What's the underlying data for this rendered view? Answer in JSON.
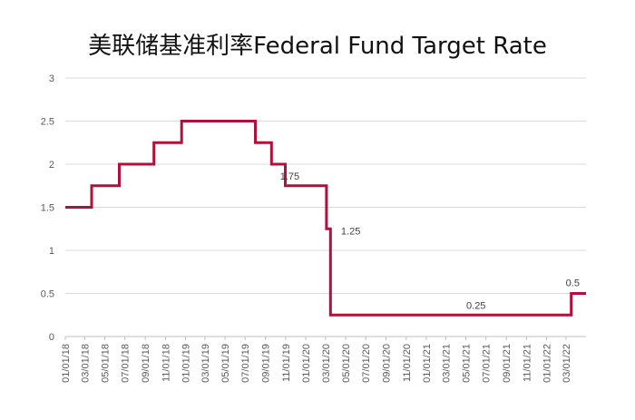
{
  "title": "美联储基准利率Federal Fund Target Rate",
  "chart_data": {
    "type": "line",
    "title": "美联储基准利率Federal Fund Target Rate",
    "xlabel": "",
    "ylabel": "",
    "ylim": [
      0,
      3
    ],
    "yticks": [
      "0",
      "0.5",
      "1",
      "1.5",
      "2",
      "2.5",
      "3"
    ],
    "xlim": [
      "2018-01-01",
      "2022-05-01"
    ],
    "xticks": [
      "01/01/18",
      "03/01/18",
      "05/01/18",
      "07/01/18",
      "09/01/18",
      "11/01/18",
      "01/01/19",
      "03/01/19",
      "05/01/19",
      "07/01/19",
      "09/01/19",
      "11/01/19",
      "01/01/20",
      "03/01/20",
      "05/01/20",
      "07/01/20",
      "09/01/20",
      "11/01/20",
      "01/01/21",
      "03/01/21",
      "05/01/21",
      "07/01/21",
      "09/01/21",
      "11/01/21",
      "01/01/22",
      "03/01/22"
    ],
    "grid": true,
    "color": "#B0103A",
    "series": [
      {
        "step": "post",
        "points": [
          {
            "x": "2018-01-01",
            "y": 1.5
          },
          {
            "x": "2018-03-22",
            "y": 1.75
          },
          {
            "x": "2018-06-14",
            "y": 2.0
          },
          {
            "x": "2018-09-27",
            "y": 2.25
          },
          {
            "x": "2018-12-20",
            "y": 2.5
          },
          {
            "x": "2019-08-01",
            "y": 2.25
          },
          {
            "x": "2019-09-19",
            "y": 2.0
          },
          {
            "x": "2019-10-31",
            "y": 1.75
          },
          {
            "x": "2020-03-04",
            "y": 1.25
          },
          {
            "x": "2020-03-16",
            "y": 0.25
          },
          {
            "x": "2022-03-17",
            "y": 0.5
          },
          {
            "x": "2022-05-01",
            "y": 0.5
          }
        ]
      }
    ],
    "data_labels": [
      {
        "text": "1.75",
        "x": "2020-01-15",
        "y": 1.75
      },
      {
        "text": "1.25",
        "x": "2020-03-04",
        "y": 1.25
      },
      {
        "text": "0.25",
        "x": "2021-06-01",
        "y": 0.25
      },
      {
        "text": "0.5",
        "x": "2022-03-17",
        "y": 0.5
      }
    ]
  }
}
